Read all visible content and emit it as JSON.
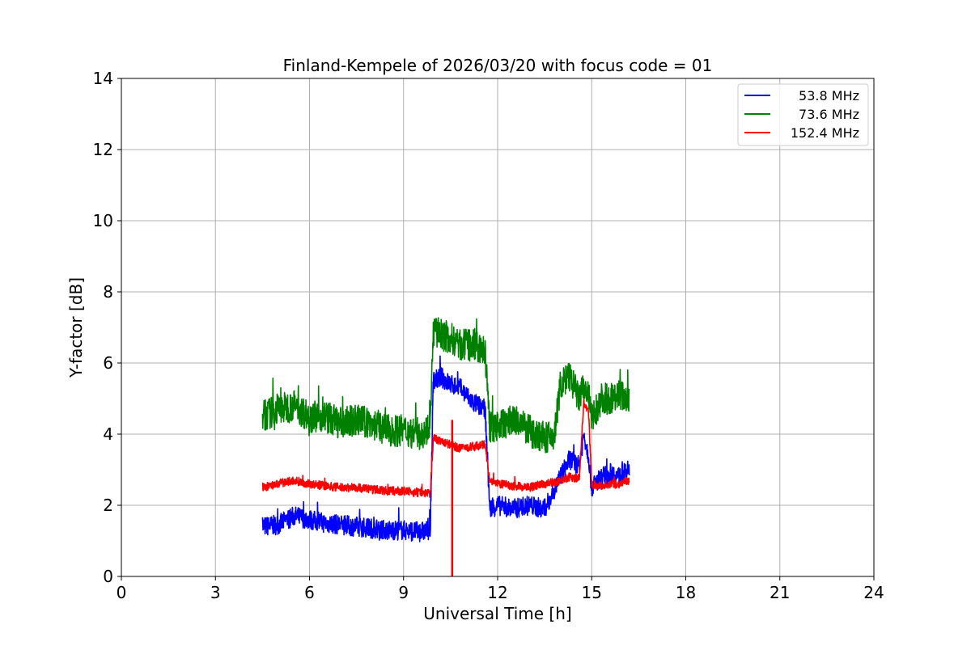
{
  "chart_data": {
    "type": "line",
    "title": "Finland-Kempele of 2026/03/20 with focus code = 01",
    "xlabel": "Universal Time [h]",
    "ylabel": "Y-factor [dB]",
    "xlim": [
      0,
      24
    ],
    "ylim": [
      0,
      14
    ],
    "xticks": [
      "0",
      "3",
      "6",
      "9",
      "12",
      "15",
      "18",
      "21",
      "24"
    ],
    "yticks": [
      "0",
      "2",
      "4",
      "6",
      "8",
      "10",
      "12",
      "14"
    ],
    "grid": true,
    "legend_position": "top-right",
    "series": [
      {
        "name": "53.8 MHz",
        "color": "#0000ff",
        "x": [
          4.5,
          5.0,
          5.5,
          6.0,
          6.5,
          7.0,
          7.5,
          8.0,
          8.5,
          9.0,
          9.5,
          9.85,
          9.95,
          10.2,
          10.5,
          10.8,
          11.2,
          11.6,
          11.75,
          12.0,
          12.5,
          13.0,
          13.5,
          13.8,
          14.0,
          14.3,
          14.6,
          14.75,
          14.9,
          15.0,
          15.3,
          15.6,
          15.9,
          16.2
        ],
        "y": [
          1.4,
          1.45,
          1.7,
          1.6,
          1.5,
          1.45,
          1.4,
          1.35,
          1.3,
          1.3,
          1.25,
          1.3,
          5.5,
          5.6,
          5.4,
          5.3,
          4.9,
          4.7,
          1.9,
          2.0,
          1.9,
          2.0,
          1.9,
          2.4,
          2.8,
          3.3,
          3.1,
          4.0,
          3.4,
          2.5,
          2.8,
          2.9,
          2.8,
          3.0
        ]
      },
      {
        "name": "73.6 MHz",
        "color": "#008000",
        "x": [
          4.5,
          5.0,
          5.5,
          6.0,
          6.5,
          7.0,
          7.5,
          8.0,
          8.5,
          9.0,
          9.5,
          9.85,
          9.95,
          10.2,
          10.5,
          10.8,
          11.2,
          11.6,
          11.75,
          12.0,
          12.5,
          13.0,
          13.5,
          13.8,
          14.0,
          14.3,
          14.6,
          14.75,
          14.9,
          15.0,
          15.3,
          15.6,
          15.9,
          16.2
        ],
        "y": [
          4.5,
          4.7,
          4.8,
          4.5,
          4.5,
          4.3,
          4.4,
          4.3,
          4.1,
          4.1,
          4.0,
          4.2,
          6.9,
          6.8,
          6.7,
          6.5,
          6.5,
          6.3,
          4.2,
          4.2,
          4.4,
          4.1,
          3.9,
          3.9,
          5.4,
          5.6,
          5.0,
          5.3,
          5.1,
          4.4,
          5.0,
          5.0,
          5.1,
          5.0
        ]
      },
      {
        "name": "152.4 MHz",
        "color": "#ff0000",
        "x": [
          4.5,
          5.0,
          5.5,
          6.0,
          6.5,
          7.0,
          7.5,
          8.0,
          8.5,
          9.0,
          9.5,
          9.85,
          9.95,
          10.2,
          10.5,
          10.8,
          11.2,
          11.6,
          11.75,
          12.0,
          12.5,
          13.0,
          13.5,
          13.8,
          14.0,
          14.3,
          14.6,
          14.75,
          14.9,
          15.0,
          15.3,
          15.6,
          15.9,
          16.2
        ],
        "y": [
          2.5,
          2.6,
          2.7,
          2.6,
          2.55,
          2.5,
          2.5,
          2.45,
          2.4,
          2.4,
          2.35,
          2.35,
          3.9,
          3.8,
          3.7,
          3.6,
          3.65,
          3.7,
          2.65,
          2.6,
          2.55,
          2.5,
          2.6,
          2.65,
          2.7,
          2.8,
          2.75,
          4.9,
          4.6,
          2.6,
          2.55,
          2.6,
          2.6,
          2.7
        ]
      }
    ],
    "annotations": [
      {
        "type": "drop",
        "series": "152.4 MHz",
        "x": 10.55,
        "y_min": 0,
        "y_max": 4.4
      }
    ]
  }
}
